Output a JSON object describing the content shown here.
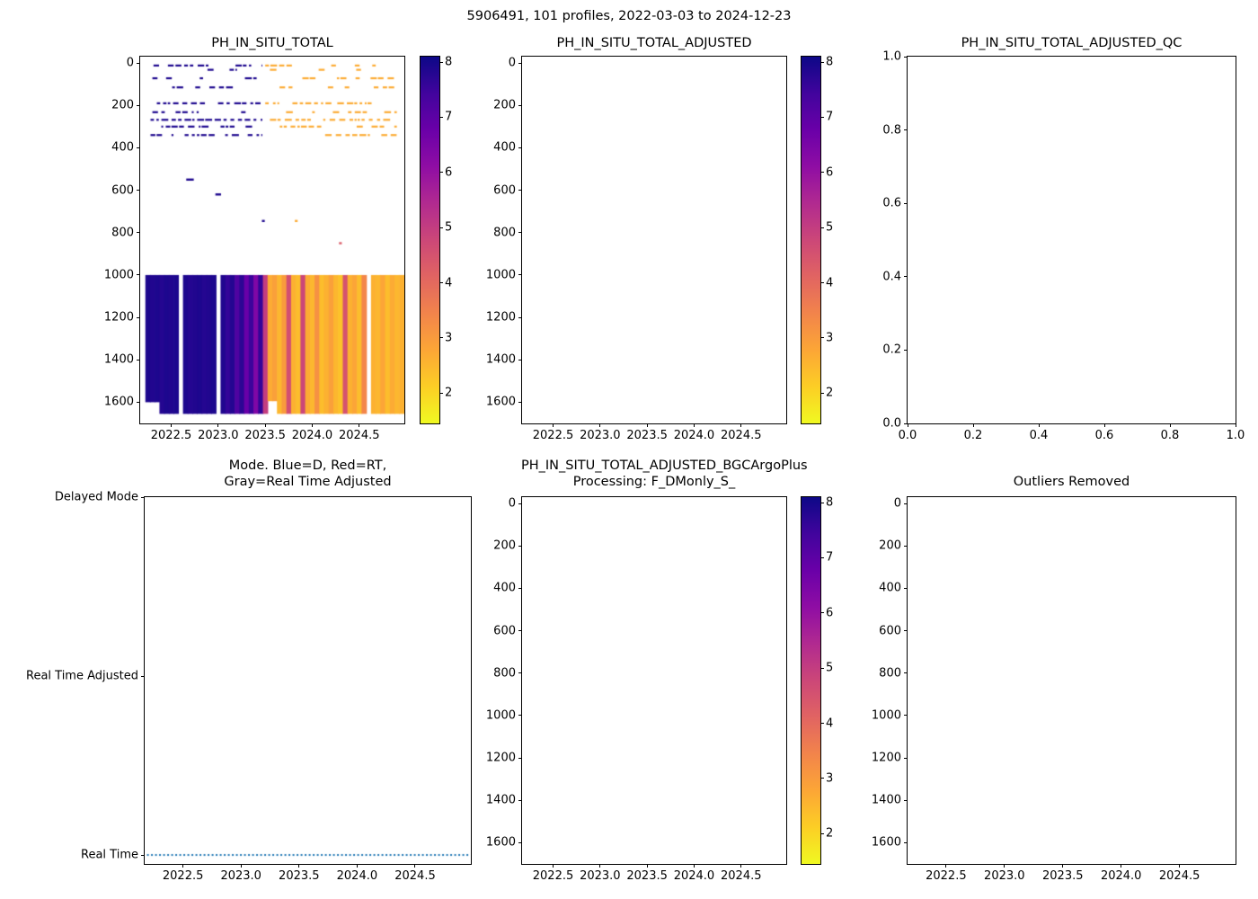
{
  "figure": {
    "title": "5906491, 101 profiles, 2022-03-03 to 2024-12-23",
    "background": "#ffffff"
  },
  "colormap": {
    "name": "plasma-reversed-high-is-dark",
    "stops": [
      "#0d0887",
      "#41049d",
      "#6a00a8",
      "#8f0da4",
      "#b12a90",
      "#cc4778",
      "#e16462",
      "#f2844b",
      "#fca636",
      "#fcce25",
      "#f0f921"
    ]
  },
  "chart_data": [
    {
      "id": "ph-in-situ-total",
      "type": "heatmap",
      "title": "PH_IN_SITU_TOTAL",
      "x": {
        "lim": [
          2022.17,
          2024.98
        ],
        "ticks": [
          2022.5,
          2023.0,
          2023.5,
          2024.0,
          2024.5
        ],
        "tick_labels": [
          "2022.5",
          "2023.0",
          "2023.5",
          "2024.0",
          "2024.5"
        ]
      },
      "y": {
        "lim": [
          -30,
          1700
        ],
        "ticks": [
          0,
          200,
          400,
          600,
          800,
          1000,
          1200,
          1400,
          1600
        ],
        "tick_labels": [
          "0",
          "200",
          "400",
          "600",
          "800",
          "1000",
          "1200",
          "1400",
          "1600"
        ]
      },
      "colorbar": {
        "vmin": 1.45,
        "vmax": 8.1,
        "ticks": [
          8,
          7,
          6,
          5,
          4,
          3,
          2
        ],
        "tick_labels": [
          "8",
          "7",
          "6",
          "5",
          "4",
          "3",
          "2"
        ]
      },
      "deep_block": {
        "depth_top": 1000,
        "default_depth_bottom": 1655,
        "column_width": 0.05,
        "columns": [
          [
            2022.25,
            7.9,
            1600
          ],
          [
            2022.3,
            7.85,
            1600
          ],
          [
            2022.35,
            7.9,
            1600
          ],
          [
            2022.4,
            7.8
          ],
          [
            2022.45,
            7.9
          ],
          [
            2022.5,
            7.85
          ],
          [
            2022.55,
            7.9
          ],
          [
            2022.6,
            null
          ],
          [
            2022.65,
            7.9
          ],
          [
            2022.7,
            7.8
          ],
          [
            2022.75,
            7.85
          ],
          [
            2022.8,
            7.9
          ],
          [
            2022.85,
            7.8
          ],
          [
            2022.9,
            7.85
          ],
          [
            2022.95,
            7.9
          ],
          [
            2023.0,
            null
          ],
          [
            2023.05,
            7.85
          ],
          [
            2023.1,
            7.6
          ],
          [
            2023.15,
            7.8
          ],
          [
            2023.2,
            7.2
          ],
          [
            2023.25,
            7.7
          ],
          [
            2023.3,
            6.8
          ],
          [
            2023.35,
            7.5
          ],
          [
            2023.4,
            6.4
          ],
          [
            2023.45,
            7.6
          ],
          [
            2023.5,
            5.0
          ],
          [
            2023.55,
            2.7,
            1595
          ],
          [
            2023.6,
            2.9,
            1595
          ],
          [
            2023.65,
            2.5
          ],
          [
            2023.7,
            3.0
          ],
          [
            2023.75,
            4.6
          ],
          [
            2023.8,
            2.6
          ],
          [
            2023.85,
            2.4
          ],
          [
            2023.9,
            4.8
          ],
          [
            2023.95,
            2.7
          ],
          [
            2024.0,
            2.5
          ],
          [
            2024.05,
            3.2
          ],
          [
            2024.1,
            2.4
          ],
          [
            2024.15,
            2.6
          ],
          [
            2024.2,
            2.9
          ],
          [
            2024.25,
            2.5
          ],
          [
            2024.3,
            2.3
          ],
          [
            2024.35,
            4.5
          ],
          [
            2024.4,
            2.6
          ],
          [
            2024.45,
            2.8
          ],
          [
            2024.5,
            2.4
          ],
          [
            2024.55,
            3.4
          ],
          [
            2024.6,
            null
          ],
          [
            2024.65,
            2.6
          ],
          [
            2024.7,
            2.5
          ],
          [
            2024.75,
            2.8
          ],
          [
            2024.8,
            2.4
          ],
          [
            2024.85,
            2.7
          ],
          [
            2024.9,
            2.5
          ],
          [
            2024.95,
            2.6
          ]
        ]
      },
      "shallow_rows": [
        {
          "depth": 12,
          "density": 0.55,
          "segments": [
            [
              2022.28,
              2023.47,
              7.9
            ],
            [
              2023.5,
              2024.95,
              2.7
            ]
          ]
        },
        {
          "depth": 32,
          "density": 0.35,
          "segments": [
            [
              2022.32,
              2023.2,
              7.9
            ],
            [
              2023.55,
              2024.9,
              2.7
            ]
          ]
        },
        {
          "depth": 72,
          "density": 0.45,
          "segments": [
            [
              2022.3,
              2023.42,
              7.9
            ],
            [
              2023.5,
              2024.92,
              2.7
            ]
          ]
        },
        {
          "depth": 115,
          "density": 0.4,
          "segments": [
            [
              2022.3,
              2023.3,
              7.9
            ],
            [
              2023.55,
              2024.95,
              2.7
            ]
          ]
        },
        {
          "depth": 190,
          "density": 0.85,
          "segments": [
            [
              2022.28,
              2023.47,
              7.9
            ],
            [
              2023.5,
              2024.95,
              2.7
            ]
          ]
        },
        {
          "depth": 232,
          "density": 0.5,
          "segments": [
            [
              2022.3,
              2023.45,
              7.9
            ],
            [
              2023.55,
              2024.9,
              2.7
            ]
          ]
        },
        {
          "depth": 268,
          "density": 0.9,
          "segments": [
            [
              2022.28,
              2023.47,
              7.9
            ],
            [
              2023.55,
              2024.85,
              2.7
            ]
          ]
        },
        {
          "depth": 300,
          "density": 0.75,
          "segments": [
            [
              2022.28,
              2023.45,
              7.9
            ],
            [
              2023.6,
              2024.9,
              2.7
            ]
          ]
        },
        {
          "depth": 340,
          "density": 0.6,
          "segments": [
            [
              2022.28,
              2023.47,
              7.9
            ],
            [
              2023.5,
              2024.95,
              2.7
            ]
          ]
        }
      ],
      "points": [
        [
          2022.7,
          550,
          7.9,
          0.08
        ],
        [
          2023.0,
          620,
          7.9,
          0.06
        ],
        [
          2023.48,
          745,
          7.9,
          0.03
        ],
        [
          2023.83,
          745,
          2.7,
          0.03
        ],
        [
          2024.3,
          850,
          4.3,
          0.03
        ]
      ]
    },
    {
      "id": "ph-in-situ-total-adjusted",
      "type": "empty",
      "title": "PH_IN_SITU_TOTAL_ADJUSTED",
      "x": {
        "lim": [
          2022.17,
          2024.98
        ],
        "ticks": [
          2022.5,
          2023.0,
          2023.5,
          2024.0,
          2024.5
        ],
        "tick_labels": [
          "2022.5",
          "2023.0",
          "2023.5",
          "2024.0",
          "2024.5"
        ]
      },
      "y": {
        "lim": [
          -30,
          1700
        ],
        "ticks": [
          0,
          200,
          400,
          600,
          800,
          1000,
          1200,
          1400,
          1600
        ],
        "tick_labels": [
          "0",
          "200",
          "400",
          "600",
          "800",
          "1000",
          "1200",
          "1400",
          "1600"
        ]
      },
      "colorbar": {
        "vmin": 1.45,
        "vmax": 8.1,
        "ticks": [
          8,
          7,
          6,
          5,
          4,
          3,
          2
        ],
        "tick_labels": [
          "8",
          "7",
          "6",
          "5",
          "4",
          "3",
          "2"
        ]
      }
    },
    {
      "id": "ph-in-situ-total-adjusted-qc",
      "type": "empty",
      "title": "PH_IN_SITU_TOTAL_ADJUSTED_QC",
      "x": {
        "lim": [
          0,
          1
        ],
        "ticks": [
          0,
          0.2,
          0.4,
          0.6,
          0.8,
          1.0
        ],
        "tick_labels": [
          "0.0",
          "0.2",
          "0.4",
          "0.6",
          "0.8",
          "1.0"
        ]
      },
      "y": {
        "lim": [
          1,
          0
        ],
        "ticks": [
          1.0,
          0.8,
          0.6,
          0.4,
          0.2,
          0.0
        ],
        "tick_labels": [
          "1.0",
          "0.8",
          "0.6",
          "0.4",
          "0.2",
          "0.0"
        ]
      }
    },
    {
      "id": "mode",
      "type": "categorical-line",
      "title_lines": [
        "Mode. Blue=D, Red=RT,",
        "Gray=Real Time Adjusted"
      ],
      "x": {
        "lim": [
          2022.17,
          2024.98
        ],
        "ticks": [
          2022.5,
          2023.0,
          2023.5,
          2024.0,
          2024.5
        ],
        "tick_labels": [
          "2022.5",
          "2023.0",
          "2023.5",
          "2024.0",
          "2024.5"
        ]
      },
      "y": {
        "lim": [
          2.0,
          -0.05
        ],
        "ticks": [
          2,
          1,
          0
        ],
        "tick_labels": [
          "Delayed Mode",
          "Real Time Adjusted",
          "Real Time"
        ]
      },
      "series": [
        {
          "name": "Real Time",
          "y_value": 0,
          "x_start": 2022.19,
          "x_end": 2024.96,
          "style": "dotted",
          "color": "#1f77b4"
        }
      ]
    },
    {
      "id": "bgc-argo-plus",
      "type": "empty",
      "title_lines": [
        "PH_IN_SITU_TOTAL_ADJUSTED_BGCArgoPlus",
        "Processing: F_DMonly_S_"
      ],
      "x": {
        "lim": [
          2022.17,
          2024.98
        ],
        "ticks": [
          2022.5,
          2023.0,
          2023.5,
          2024.0,
          2024.5
        ],
        "tick_labels": [
          "2022.5",
          "2023.0",
          "2023.5",
          "2024.0",
          "2024.5"
        ]
      },
      "y": {
        "lim": [
          -30,
          1700
        ],
        "ticks": [
          0,
          200,
          400,
          600,
          800,
          1000,
          1200,
          1400,
          1600
        ],
        "tick_labels": [
          "0",
          "200",
          "400",
          "600",
          "800",
          "1000",
          "1200",
          "1400",
          "1600"
        ]
      },
      "colorbar": {
        "vmin": 1.45,
        "vmax": 8.1,
        "ticks": [
          8,
          7,
          6,
          5,
          4,
          3,
          2
        ],
        "tick_labels": [
          "8",
          "7",
          "6",
          "5",
          "4",
          "3",
          "2"
        ]
      }
    },
    {
      "id": "outliers-removed",
      "type": "empty",
      "title": "Outliers Removed",
      "x": {
        "lim": [
          2022.17,
          2024.98
        ],
        "ticks": [
          2022.5,
          2023.0,
          2023.5,
          2024.0,
          2024.5
        ],
        "tick_labels": [
          "2022.5",
          "2023.0",
          "2023.5",
          "2024.0",
          "2024.5"
        ]
      },
      "y": {
        "lim": [
          -30,
          1700
        ],
        "ticks": [
          0,
          200,
          400,
          600,
          800,
          1000,
          1200,
          1400,
          1600
        ],
        "tick_labels": [
          "0",
          "200",
          "400",
          "600",
          "800",
          "1000",
          "1200",
          "1400",
          "1600"
        ]
      }
    }
  ]
}
